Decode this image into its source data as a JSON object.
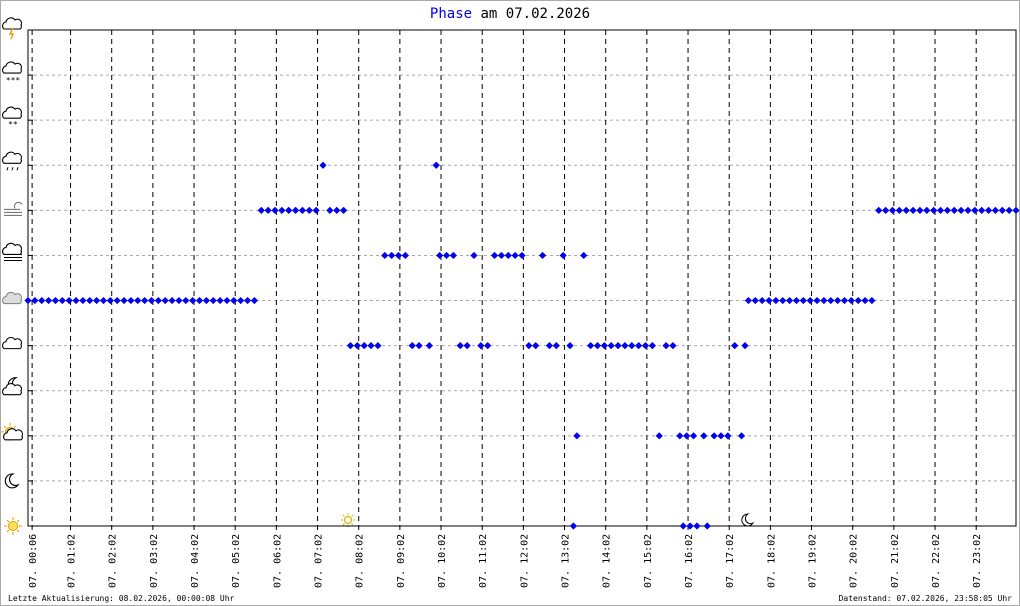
{
  "chart_data": {
    "type": "scatter",
    "title_series": "Phase",
    "title": "am 07.02.2026",
    "footer_left": "Letzte Aktualisierung: 08.02.2026, 00:00:08 Uhr",
    "footer_right": "Datenstand: 07.02.2026, 23:58:05 Uhr",
    "color": "#0000ee",
    "grid": true,
    "xlim": [
      0,
      1440
    ],
    "ylim": [
      0,
      11
    ],
    "yticks": [
      0,
      1,
      2,
      3,
      4,
      5,
      6,
      7,
      8,
      9,
      10,
      11
    ],
    "xticks": [
      {
        "value": 6,
        "label": "07. 00:06"
      },
      {
        "value": 62,
        "label": "07. 01:02"
      },
      {
        "value": 122,
        "label": "07. 02:02"
      },
      {
        "value": 182,
        "label": "07. 03:02"
      },
      {
        "value": 242,
        "label": "07. 04:02"
      },
      {
        "value": 302,
        "label": "07. 05:02"
      },
      {
        "value": 362,
        "label": "07. 06:02"
      },
      {
        "value": 422,
        "label": "07. 07:02"
      },
      {
        "value": 482,
        "label": "07. 08:02"
      },
      {
        "value": 542,
        "label": "07. 09:02"
      },
      {
        "value": 602,
        "label": "07. 10:02"
      },
      {
        "value": 662,
        "label": "07. 11:02"
      },
      {
        "value": 722,
        "label": "07. 12:02"
      },
      {
        "value": 782,
        "label": "07. 13:02"
      },
      {
        "value": 842,
        "label": "07. 14:02"
      },
      {
        "value": 902,
        "label": "07. 15:02"
      },
      {
        "value": 962,
        "label": "07. 16:02"
      },
      {
        "value": 1022,
        "label": "07. 17:02"
      },
      {
        "value": 1082,
        "label": "07. 18:02"
      },
      {
        "value": 1142,
        "label": "07. 19:02"
      },
      {
        "value": 1202,
        "label": "07. 20:02"
      },
      {
        "value": 1262,
        "label": "07. 21:02"
      },
      {
        "value": 1322,
        "label": "07. 22:02"
      },
      {
        "value": 1382,
        "label": "07. 23:02"
      }
    ],
    "x": [
      0,
      10,
      20,
      30,
      40,
      50,
      60,
      70,
      80,
      90,
      100,
      110,
      120,
      130,
      140,
      150,
      160,
      170,
      180,
      190,
      200,
      210,
      220,
      230,
      240,
      250,
      260,
      270,
      280,
      290,
      300,
      310,
      320,
      330,
      340,
      350,
      360,
      370,
      380,
      390,
      400,
      410,
      420,
      430,
      440,
      450,
      460,
      470,
      480,
      490,
      500,
      510,
      520,
      530,
      540,
      550,
      560,
      570,
      585,
      595,
      600,
      610,
      620,
      630,
      640,
      650,
      660,
      670,
      680,
      690,
      700,
      710,
      720,
      730,
      740,
      750,
      760,
      770,
      780,
      790,
      795,
      800,
      810,
      820,
      830,
      840,
      850,
      860,
      870,
      880,
      890,
      900,
      910,
      920,
      930,
      940,
      950,
      955,
      960,
      965,
      970,
      975,
      985,
      990,
      1000,
      1010,
      1020,
      1030,
      1040,
      1045,
      1050,
      1060,
      1070,
      1080,
      1090,
      1100,
      1110,
      1120,
      1130,
      1140,
      1150,
      1160,
      1170,
      1180,
      1190,
      1200,
      1210,
      1220,
      1230,
      1240,
      1250,
      1260,
      1270,
      1280,
      1290,
      1300,
      1310,
      1320,
      1330,
      1340,
      1350,
      1360,
      1370,
      1380,
      1390,
      1400,
      1410,
      1420,
      1430,
      1440
    ],
    "values": [
      5,
      5,
      5,
      5,
      5,
      5,
      5,
      5,
      5,
      5,
      5,
      5,
      5,
      5,
      5,
      5,
      5,
      5,
      5,
      5,
      5,
      5,
      5,
      5,
      5,
      5,
      5,
      5,
      5,
      5,
      5,
      5,
      5,
      5,
      7,
      7,
      7,
      7,
      7,
      7,
      7,
      7,
      7,
      8,
      7,
      7,
      7,
      4,
      4,
      4,
      4,
      4,
      6,
      6,
      6,
      6,
      4,
      4,
      4,
      8,
      6,
      6,
      6,
      4,
      4,
      6,
      4,
      4,
      6,
      6,
      6,
      6,
      6,
      4,
      4,
      6,
      4,
      4,
      6,
      4,
      0,
      2,
      6,
      4,
      4,
      4,
      4,
      4,
      4,
      4,
      4,
      4,
      4,
      2,
      4,
      4,
      2,
      0,
      2,
      0,
      2,
      0,
      2,
      0,
      2,
      2,
      2,
      4,
      2,
      4,
      5,
      5,
      5,
      5,
      5,
      5,
      5,
      5,
      5,
      5,
      5,
      5,
      5,
      5,
      5,
      5,
      5,
      5,
      5,
      7,
      7,
      7,
      7,
      7,
      7,
      7,
      7,
      7,
      7,
      7,
      7,
      7,
      7,
      7,
      7,
      7,
      7,
      7,
      7,
      7
    ]
  }
}
